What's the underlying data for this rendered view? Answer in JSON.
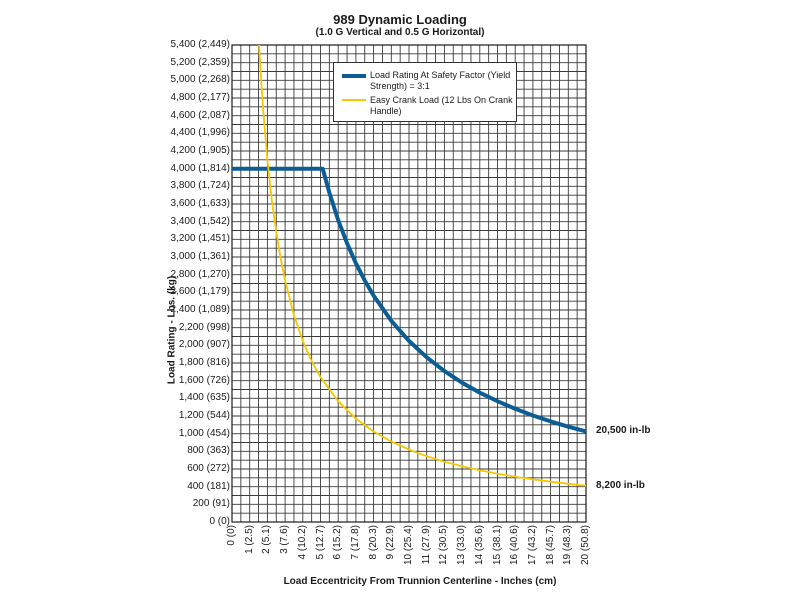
{
  "chart_data": {
    "type": "line",
    "title": "989 Dynamic Loading",
    "subtitle": "(1.0 G Vertical and 0.5 G Horizontal)",
    "xlabel": "Load Eccentricity From Trunnion Centerline - Inches (cm)",
    "ylabel": "Load Rating - Lbs. (kg)",
    "xlim": [
      0,
      20
    ],
    "ylim": [
      0,
      5400
    ],
    "grid": true,
    "x_ticks": [
      "0",
      "1",
      "2",
      "3",
      "4",
      "5",
      "6",
      "7",
      "8",
      "9",
      "10",
      "11",
      "12",
      "13",
      "14",
      "15",
      "16",
      "17",
      "18",
      "19",
      "20"
    ],
    "x_ticks_cm": [
      "(0)",
      "(2.5)",
      "(5.1)",
      "(7.6)",
      "(10.2)",
      "(12.7)",
      "(15.2)",
      "(17.8)",
      "(20.3)",
      "(22.9)",
      "(25.4)",
      "(27.9)",
      "(30.5)",
      "(33.0)",
      "(35.6)",
      "(38.1)",
      "(40.6)",
      "(43.2)",
      "(45.7)",
      "(48.3)",
      "(50.8)"
    ],
    "y_ticks": [
      "0",
      "200",
      "400",
      "600",
      "800",
      "1,000",
      "1,200",
      "1,400",
      "1,600",
      "1,800",
      "2,000",
      "2,200",
      "2,400",
      "2,600",
      "2,800",
      "3,000",
      "3,200",
      "3,400",
      "3,600",
      "3,800",
      "4,000",
      "4,200",
      "4,400",
      "4,600",
      "4,800",
      "5,000",
      "5,200",
      "5,400"
    ],
    "y_ticks_kg": [
      "(0)",
      "(91)",
      "(181)",
      "(272)",
      "(363)",
      "(454)",
      "(544)",
      "(635)",
      "(726)",
      "(816)",
      "(907)",
      "(998)",
      "(1,089)",
      "(1,179)",
      "(1,270)",
      "(1,361)",
      "(1,451)",
      "(1,542)",
      "(1,633)",
      "(1,724)",
      "(1,814)",
      "(1,905)",
      "(1,996)",
      "(2,087)",
      "(2,177)",
      "(2,268)",
      "(2,359)",
      "(2,449)"
    ],
    "series": [
      {
        "name": "Load Rating At Safety Factor (Yield Strength) = 3:1",
        "color": "#0b5e95",
        "end_label": "20,500 in-lb",
        "x": [
          0,
          5.125,
          5.5,
          6,
          6.5,
          7,
          7.5,
          8,
          9,
          10,
          11,
          12,
          13,
          14,
          15,
          16,
          17,
          18,
          19,
          20
        ],
        "y": [
          4000,
          4000,
          3727,
          3417,
          3154,
          2929,
          2733,
          2563,
          2278,
          2050,
          1864,
          1708,
          1577,
          1464,
          1367,
          1281,
          1206,
          1139,
          1079,
          1025
        ]
      },
      {
        "name": "Easy Crank Load (12 Lbs On Crank Handle)",
        "color": "#f5c800",
        "end_label": "8,200 in-lb",
        "x": [
          1.5,
          1.75,
          2,
          2.25,
          2.5,
          2.75,
          3,
          3.5,
          4,
          4.5,
          5,
          6,
          7,
          8,
          9,
          10,
          11,
          12,
          13,
          14,
          15,
          16,
          17,
          18,
          19,
          20
        ],
        "y": [
          5467,
          4686,
          4100,
          3644,
          3280,
          2982,
          2733,
          2343,
          2050,
          1822,
          1640,
          1367,
          1171,
          1025,
          911,
          820,
          745,
          683,
          631,
          586,
          547,
          513,
          482,
          456,
          432,
          410
        ]
      }
    ]
  }
}
